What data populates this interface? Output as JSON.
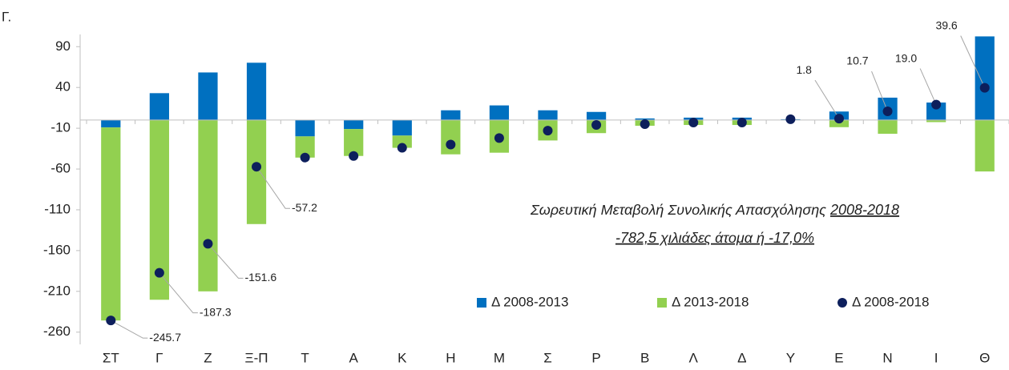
{
  "chart_data": {
    "type": "bar",
    "title": "Γ.",
    "categories": [
      "ΣΤ",
      "Γ",
      "Ζ",
      "Ξ-Π",
      "Τ",
      "Α",
      "Κ",
      "Η",
      "Μ",
      "Σ",
      "Ρ",
      "Β",
      "Λ",
      "Δ",
      "Υ",
      "Ε",
      "Ν",
      "Ι",
      "Θ"
    ],
    "series": [
      {
        "name": "Δ 2008-2013",
        "color": "#0070c0",
        "values": [
          -9,
          33,
          58.4,
          70.3,
          -20,
          -11,
          -19,
          12,
          18,
          12,
          10,
          2,
          3,
          3,
          1,
          10.5,
          27.5,
          21.5,
          102.6
        ]
      },
      {
        "name": "Δ 2013-2018",
        "color": "#92d050",
        "values": [
          -236.7,
          -220.3,
          -210,
          -127.5,
          -26,
          -33,
          -15,
          -42,
          -40,
          -25,
          -16,
          -7,
          -6,
          -6,
          0,
          -8.7,
          -16.8,
          -2.5,
          -63
        ]
      },
      {
        "name": "Δ 2008-2018",
        "color": "#0d1f5c",
        "type": "scatter",
        "values": [
          -245.7,
          -187.3,
          -151.6,
          -57.2,
          -46,
          -44,
          -34,
          -30,
          -22,
          -13,
          -6,
          -5,
          -3,
          -3,
          1,
          1.8,
          10.7,
          19.0,
          39.6
        ],
        "value_labels": [
          "-245.7",
          "-187.3",
          "-151.6",
          "-57.2",
          null,
          null,
          null,
          null,
          null,
          null,
          null,
          null,
          null,
          null,
          null,
          "1.8",
          "10.7",
          "19.0",
          "39.6"
        ]
      }
    ],
    "annotation": {
      "line1": "Σωρευτική Μεταβολή Συνολικής Απασχόλησης ",
      "line1_underlined": "2008-2018",
      "line2": "-782,5 χιλιάδες άτομα ή -17,0%"
    },
    "ylim": [
      -275,
      105
    ],
    "yticks": [
      90,
      40,
      -10,
      -60,
      -110,
      -160,
      -210,
      -260
    ],
    "grid": false
  }
}
